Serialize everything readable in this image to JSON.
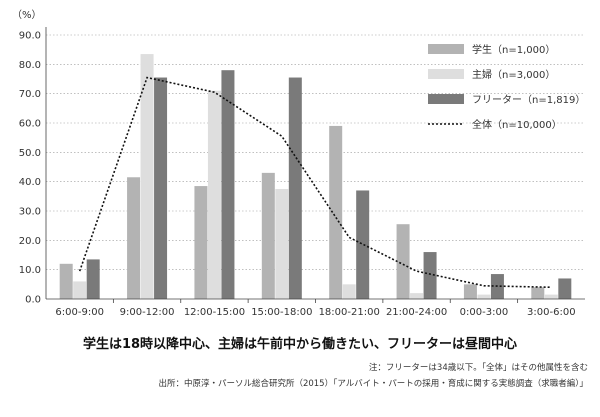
{
  "chart_data": {
    "type": "bar",
    "unit_label": "（%）",
    "categories": [
      "6:00-9:00",
      "9:00-12:00",
      "12:00-15:00",
      "15:00-18:00",
      "18:00-21:00",
      "21:00-24:00",
      "0:00-3:00",
      "3:00-6:00"
    ],
    "series": [
      {
        "name": "学生（n=1,000）",
        "values": [
          12.0,
          41.5,
          38.5,
          43.0,
          59.0,
          25.5,
          5.0,
          4.0
        ],
        "color": "#b3b3b3"
      },
      {
        "name": "主婦（n=3,000）",
        "values": [
          6.0,
          83.5,
          71.0,
          37.5,
          5.0,
          2.0,
          1.5,
          1.5
        ],
        "color": "#dedede"
      },
      {
        "name": "フリーター（n=1,819）",
        "values": [
          13.5,
          75.5,
          78.0,
          75.5,
          37.0,
          16.0,
          8.5,
          7.0
        ],
        "color": "#7a7a7a"
      }
    ],
    "line_series": {
      "name": "全体（n=10,000）",
      "values": [
        9.5,
        75.5,
        70.5,
        55.5,
        21.0,
        9.5,
        4.5,
        4.0
      ],
      "style": "dotted"
    },
    "ylim": [
      0,
      90
    ],
    "yticks": [
      "0.0",
      "10.0",
      "20.0",
      "30.0",
      "40.0",
      "50.0",
      "60.0",
      "70.0",
      "80.0",
      "90.0"
    ],
    "grid": "horizontal dotted",
    "legend_position": "top-right"
  },
  "caption": "学生は18時以降中心、主婦は午前中から働きたい、フリーターは昼間中心",
  "notes": {
    "note1": "注：フリーターは34歳以下。「全体」はその他属性を含む",
    "note2": "出所：中原淳・パーソル総合研究所（2015）「アルバイト・パートの採用・育成に関する実態調査（求職者編）」"
  }
}
